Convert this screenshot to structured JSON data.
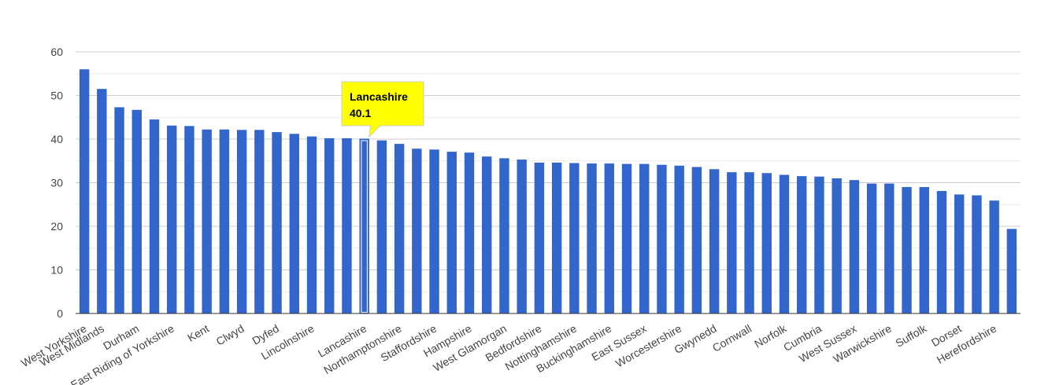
{
  "colors": {
    "bar": "#3366cc",
    "highlight_outline": "#ffffff",
    "grid_major": "#cccccc",
    "grid_minor": "#ebebeb",
    "axis": "#333333",
    "tooltip_bg": "#ffff00",
    "tooltip_border": "#cccccc"
  },
  "tooltip": {
    "label": "Lancashire",
    "value": "40.1",
    "series_index": 16
  },
  "chart_data": {
    "type": "bar",
    "title": "",
    "xlabel": "",
    "ylabel": "",
    "ylim": [
      0,
      60
    ],
    "yticks": [
      0,
      10,
      20,
      30,
      40,
      50,
      60
    ],
    "grid": true,
    "x_tick_labels": [
      {
        "index": 0,
        "label": "West Yorkshire"
      },
      {
        "index": 1,
        "label": "West Midlands"
      },
      {
        "index": 3,
        "label": "Durham"
      },
      {
        "index": 5,
        "label": "East Riding of Yorkshire"
      },
      {
        "index": 7,
        "label": "Kent"
      },
      {
        "index": 9,
        "label": "Clwyd"
      },
      {
        "index": 11,
        "label": "Dyfed"
      },
      {
        "index": 13,
        "label": "Lincolnshire"
      },
      {
        "index": 16,
        "label": "Lancashire"
      },
      {
        "index": 18,
        "label": "Northamptonshire"
      },
      {
        "index": 20,
        "label": "Staffordshire"
      },
      {
        "index": 22,
        "label": "Hampshire"
      },
      {
        "index": 24,
        "label": "West Glamorgan"
      },
      {
        "index": 26,
        "label": "Bedfordshire"
      },
      {
        "index": 28,
        "label": "Nottinghamshire"
      },
      {
        "index": 30,
        "label": "Buckinghamshire"
      },
      {
        "index": 32,
        "label": "East Sussex"
      },
      {
        "index": 34,
        "label": "Worcestershire"
      },
      {
        "index": 36,
        "label": "Gwynedd"
      },
      {
        "index": 38,
        "label": "Cornwall"
      },
      {
        "index": 40,
        "label": "Norfolk"
      },
      {
        "index": 42,
        "label": "Cumbria"
      },
      {
        "index": 44,
        "label": "West Sussex"
      },
      {
        "index": 46,
        "label": "Warwickshire"
      },
      {
        "index": 48,
        "label": "Suffolk"
      },
      {
        "index": 50,
        "label": "Dorset"
      },
      {
        "index": 52,
        "label": "Herefordshire"
      }
    ],
    "values": [
      56,
      51.5,
      47.3,
      46.7,
      44.5,
      43.1,
      43,
      42.2,
      42.2,
      42.1,
      42.1,
      41.6,
      41.2,
      40.6,
      40.2,
      40.2,
      40.1,
      39.7,
      38.9,
      37.8,
      37.6,
      37.1,
      36.9,
      36,
      35.6,
      35.3,
      34.6,
      34.6,
      34.5,
      34.4,
      34.4,
      34.3,
      34.3,
      34.1,
      33.9,
      33.6,
      33.1,
      32.4,
      32.4,
      32.2,
      31.8,
      31.5,
      31.4,
      31,
      30.6,
      29.8,
      29.8,
      29,
      29,
      28.1,
      27.3,
      27.1,
      25.9,
      19.4
    ]
  }
}
